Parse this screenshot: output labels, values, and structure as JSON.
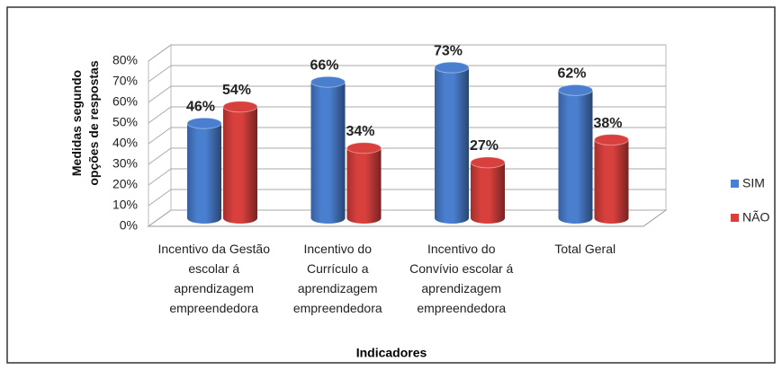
{
  "chart_data": {
    "type": "bar3d",
    "categories": [
      "Incentivo da Gestão escolar á aprendizagem empreendedora",
      "Incentivo do Currículo a aprendizagem empreendedora",
      "Incentivo do Convívio escolar á aprendizagem empreendedora",
      "Total Geral"
    ],
    "series": [
      {
        "name": "SIM",
        "color": "#4a7fcf",
        "values": [
          46,
          66,
          73,
          62
        ],
        "value_labels": [
          "46%",
          "66%",
          "73%",
          "62%"
        ]
      },
      {
        "name": "NÃO",
        "color": "#d8403d",
        "values": [
          54,
          34,
          27,
          38
        ],
        "value_labels": [
          "54%",
          "34%",
          "27%",
          "38%"
        ]
      }
    ],
    "xlabel": "Indicadores",
    "ylabel": "Medidas segundo opções de respostas",
    "ylim": [
      0,
      80
    ],
    "yticks": [
      {
        "value": 0,
        "label": "0%"
      },
      {
        "value": 10,
        "label": "10%"
      },
      {
        "value": 20,
        "label": "20%"
      },
      {
        "value": 30,
        "label": "30%"
      },
      {
        "value": 40,
        "label": "40%"
      },
      {
        "value": 50,
        "label": "50%"
      },
      {
        "value": 60,
        "label": "60%"
      },
      {
        "value": 70,
        "label": "70%"
      },
      {
        "value": 80,
        "label": "80%"
      }
    ],
    "grid": true,
    "legend": "right"
  }
}
